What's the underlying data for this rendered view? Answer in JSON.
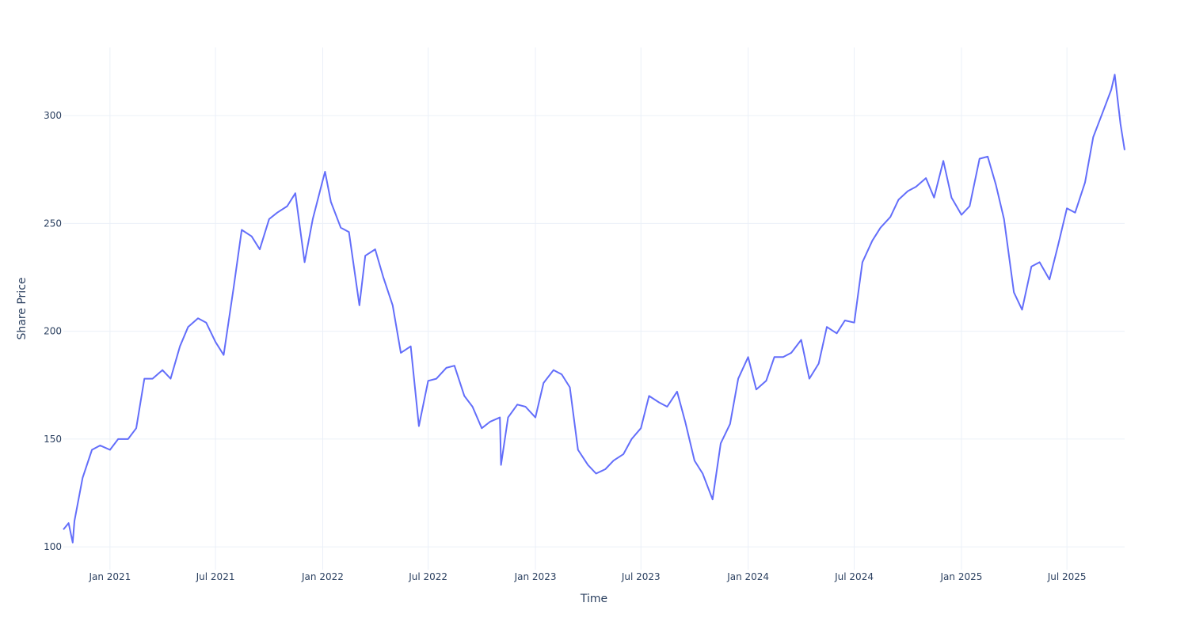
{
  "chart_data": {
    "type": "line",
    "title": "",
    "xlabel": "Time",
    "ylabel": "Share Price",
    "xlim": [
      "2020-10-13",
      "2025-10-08"
    ],
    "ylim": [
      89.4,
      331.6
    ],
    "grid": true,
    "line_color": "#636efa",
    "x_ticks": [
      {
        "date": "2021-01-01",
        "label": "Jan 2021"
      },
      {
        "date": "2021-07-01",
        "label": "Jul 2021"
      },
      {
        "date": "2022-01-01",
        "label": "Jan 2022"
      },
      {
        "date": "2022-07-01",
        "label": "Jul 2022"
      },
      {
        "date": "2023-01-01",
        "label": "Jan 2023"
      },
      {
        "date": "2023-07-01",
        "label": "Jul 2023"
      },
      {
        "date": "2024-01-01",
        "label": "Jan 2024"
      },
      {
        "date": "2024-07-01",
        "label": "Jul 2024"
      },
      {
        "date": "2025-01-01",
        "label": "Jan 2025"
      },
      {
        "date": "2025-07-01",
        "label": "Jul 2025"
      }
    ],
    "y_ticks": [
      {
        "value": 100,
        "label": "100"
      },
      {
        "value": 150,
        "label": "150"
      },
      {
        "value": 200,
        "label": "200"
      },
      {
        "value": 250,
        "label": "250"
      },
      {
        "value": 300,
        "label": "300"
      }
    ],
    "series": [
      {
        "x": [
          "2020-10-13",
          "2020-10-22",
          "2020-10-29",
          "2020-11-01",
          "2020-11-15",
          "2020-12-01",
          "2020-12-15",
          "2021-01-01",
          "2021-01-15",
          "2021-02-01",
          "2021-02-15",
          "2021-03-01",
          "2021-03-15",
          "2021-04-01",
          "2021-04-15",
          "2021-05-01",
          "2021-05-15",
          "2021-06-01",
          "2021-06-15",
          "2021-07-01",
          "2021-07-15",
          "2021-08-01",
          "2021-08-15",
          "2021-09-01",
          "2021-09-15",
          "2021-10-01",
          "2021-10-15",
          "2021-11-01",
          "2021-11-15",
          "2021-12-01",
          "2021-12-15",
          "2022-01-01",
          "2022-01-05",
          "2022-01-15",
          "2022-02-01",
          "2022-02-15",
          "2022-03-05",
          "2022-03-15",
          "2022-04-01",
          "2022-04-15",
          "2022-05-01",
          "2022-05-15",
          "2022-06-01",
          "2022-06-15",
          "2022-07-01",
          "2022-07-15",
          "2022-08-01",
          "2022-08-15",
          "2022-09-01",
          "2022-09-15",
          "2022-10-01",
          "2022-10-15",
          "2022-11-01",
          "2022-11-03",
          "2022-11-15",
          "2022-12-01",
          "2022-12-15",
          "2023-01-01",
          "2023-01-15",
          "2023-02-01",
          "2023-02-15",
          "2023-03-01",
          "2023-03-15",
          "2023-04-01",
          "2023-04-15",
          "2023-05-01",
          "2023-05-15",
          "2023-06-01",
          "2023-06-15",
          "2023-07-01",
          "2023-07-15",
          "2023-08-01",
          "2023-08-15",
          "2023-09-01",
          "2023-09-15",
          "2023-10-01",
          "2023-10-15",
          "2023-11-01",
          "2023-11-15",
          "2023-12-01",
          "2023-12-15",
          "2024-01-01",
          "2024-01-15",
          "2024-02-01",
          "2024-02-15",
          "2024-03-01",
          "2024-03-15",
          "2024-04-01",
          "2024-04-15",
          "2024-05-01",
          "2024-05-15",
          "2024-06-01",
          "2024-06-15",
          "2024-07-01",
          "2024-07-15",
          "2024-08-01",
          "2024-08-15",
          "2024-09-01",
          "2024-09-15",
          "2024-10-01",
          "2024-10-15",
          "2024-11-01",
          "2024-11-15",
          "2024-12-01",
          "2024-12-15",
          "2025-01-01",
          "2025-01-15",
          "2025-02-01",
          "2025-02-15",
          "2025-03-01",
          "2025-03-15",
          "2025-04-01",
          "2025-04-15",
          "2025-05-01",
          "2025-05-15",
          "2025-06-01",
          "2025-06-15",
          "2025-07-01",
          "2025-07-15",
          "2025-08-01",
          "2025-08-15",
          "2025-09-01",
          "2025-09-15",
          "2025-09-21",
          "2025-10-01",
          "2025-10-08"
        ],
        "y": [
          108,
          111,
          102,
          112,
          132,
          145,
          147,
          145,
          150,
          150,
          155,
          178,
          178,
          182,
          178,
          193,
          202,
          206,
          204,
          195,
          189,
          220,
          247,
          244,
          238,
          252,
          255,
          258,
          264,
          232,
          252,
          270,
          274,
          260,
          248,
          246,
          212,
          235,
          238,
          225,
          212,
          190,
          193,
          156,
          177,
          178,
          183,
          184,
          170,
          165,
          155,
          158,
          160,
          138,
          160,
          166,
          165,
          160,
          176,
          182,
          180,
          174,
          145,
          138,
          134,
          136,
          140,
          143,
          150,
          155,
          170,
          167,
          165,
          172,
          158,
          140,
          134,
          122,
          148,
          157,
          178,
          188,
          173,
          177,
          188,
          188,
          190,
          196,
          178,
          185,
          202,
          199,
          205,
          204,
          232,
          242,
          248,
          253,
          261,
          265,
          267,
          271,
          262,
          279,
          262,
          254,
          258,
          280,
          281,
          268,
          252,
          218,
          210,
          230,
          232,
          224,
          239,
          257,
          255,
          269,
          290,
          302,
          312,
          319,
          296,
          284
        ]
      }
    ]
  }
}
